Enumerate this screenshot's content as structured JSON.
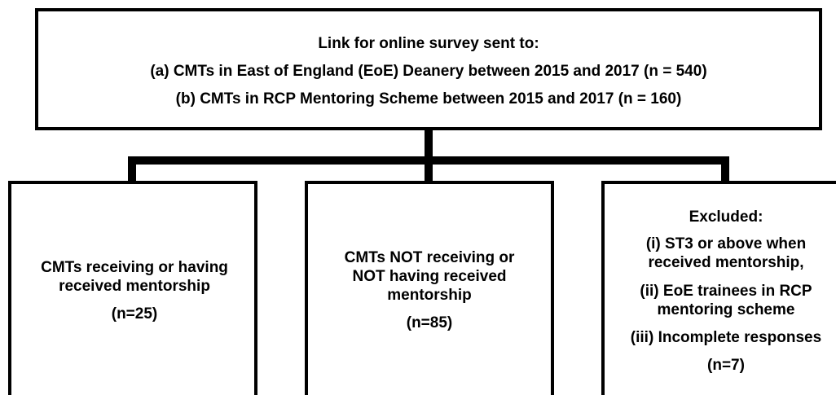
{
  "top": {
    "lines": [
      "Link for online survey sent to:",
      "(a) CMTs in East of England (EoE) Deanery between 2015 and 2017 (n = 540)",
      "(b) CMTs in RCP Mentoring Scheme between 2015 and 2017 (n = 160)"
    ]
  },
  "nodes": [
    {
      "lines": [
        "CMTs receiving or having",
        "received mentorship"
      ],
      "count": "(n=25)"
    },
    {
      "lines": [
        "CMTs NOT receiving or",
        "NOT having received",
        "mentorship"
      ],
      "count": "(n=85)"
    },
    {
      "lines": [
        "Excluded:",
        "(i) ST3 or above when",
        "received mentorship,",
        "(ii) EoE trainees in RCP",
        "mentoring scheme",
        "(iii) Incomplete responses"
      ],
      "count": "(n=7)"
    }
  ]
}
